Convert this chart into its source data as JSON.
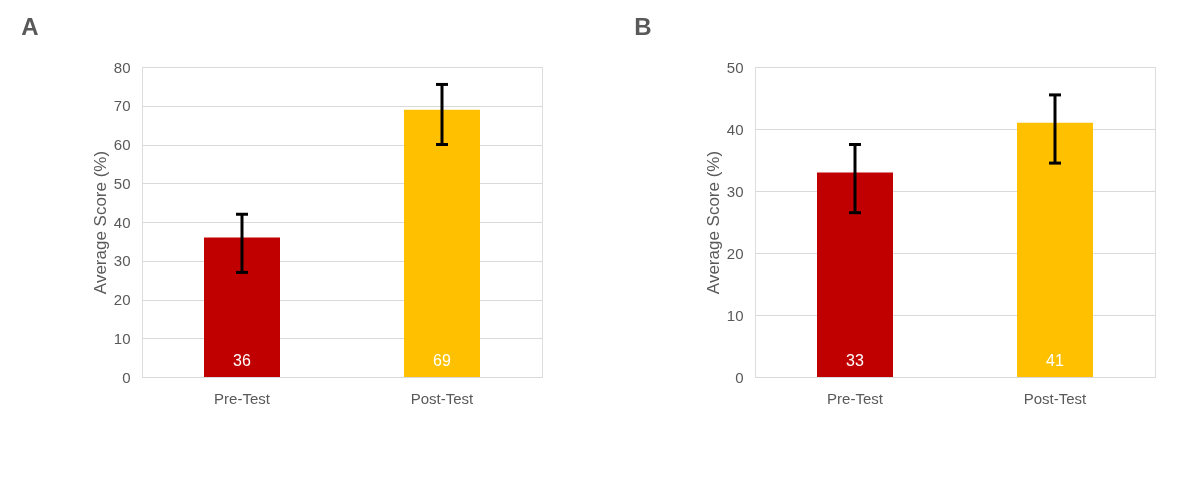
{
  "chart_data": [
    {
      "type": "bar",
      "title": "A",
      "ylabel": "Average Score (%)",
      "categories": [
        "Pre-Test",
        "Post-Test"
      ],
      "values": [
        36,
        69
      ],
      "colors": [
        "#c00000",
        "#ffc000"
      ],
      "errors": [
        [
          27,
          42
        ],
        [
          60,
          75.5
        ]
      ],
      "ylim": [
        0,
        80
      ],
      "yticks": [
        0,
        10,
        20,
        30,
        40,
        50,
        60,
        70,
        80
      ],
      "grid": "y",
      "data_labels": true
    },
    {
      "type": "bar",
      "title": "B",
      "ylabel": "Average Score (%)",
      "categories": [
        "Pre-Test",
        "Post-Test"
      ],
      "values": [
        33,
        41
      ],
      "colors": [
        "#c00000",
        "#ffc000"
      ],
      "errors": [
        [
          26.5,
          37.5
        ],
        [
          34.5,
          45.5
        ]
      ],
      "ylim": [
        0,
        50
      ],
      "yticks": [
        0,
        10,
        20,
        30,
        40,
        50
      ],
      "grid": "y",
      "data_labels": true
    }
  ]
}
